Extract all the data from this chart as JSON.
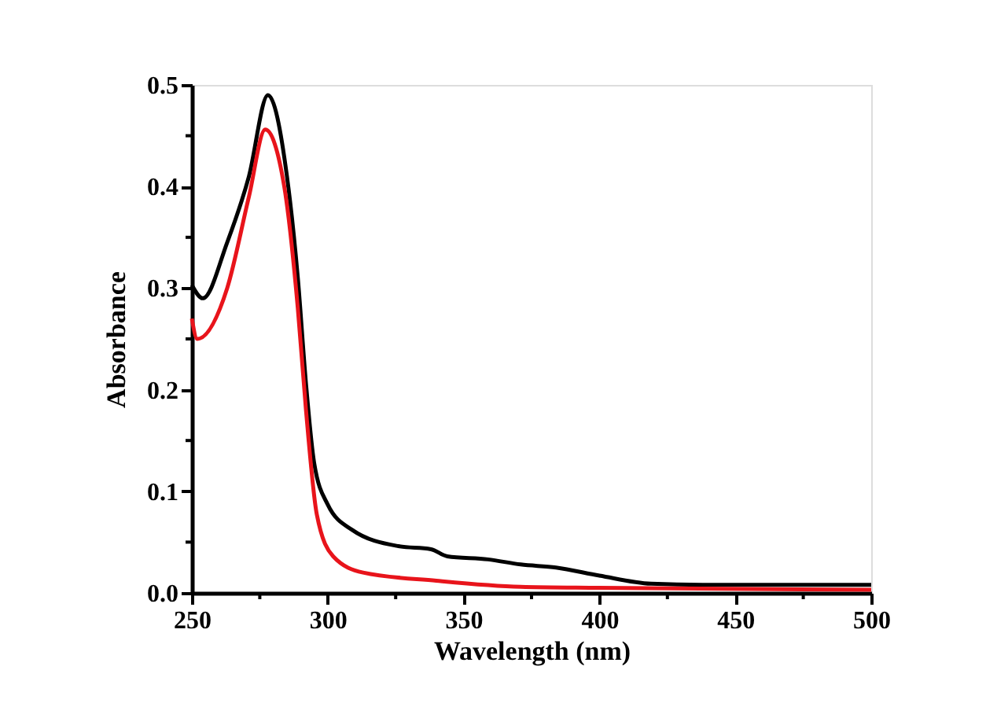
{
  "chart_data": {
    "type": "line",
    "xlabel": "Wavelength (nm)",
    "ylabel": "Absorbance",
    "xlim": [
      250,
      500
    ],
    "ylim": [
      0,
      0.5
    ],
    "xticks": [
      250,
      {
        "value": 275,
        "label": null
      },
      300,
      {
        "value": 325,
        "label": null
      },
      350,
      {
        "value": 375,
        "label": null
      },
      400,
      {
        "value": 425,
        "label": null
      },
      450,
      {
        "value": 475,
        "label": null
      },
      500
    ],
    "yticks": [
      {
        "value": 0,
        "label": "0.0"
      },
      {
        "value": 0.05,
        "label": null
      },
      {
        "value": 0.1,
        "label": "0.1"
      },
      {
        "value": 0.15,
        "label": null
      },
      {
        "value": 0.2,
        "label": "0.2"
      },
      {
        "value": 0.25,
        "label": null
      },
      {
        "value": 0.3,
        "label": "0.3"
      },
      {
        "value": 0.35,
        "label": null
      },
      {
        "value": 0.4,
        "label": "0.4"
      },
      {
        "value": 0.45,
        "label": null
      },
      {
        "value": 0.5,
        "label": "0.5"
      }
    ],
    "grid": false,
    "marker": "none",
    "line_style": "solid",
    "series": [
      {
        "color": "#000000",
        "x": [
          250,
          254,
          263,
          271,
          278,
          285,
          289,
          292,
          295,
          300,
          309,
          326,
          338,
          344,
          359,
          371,
          384,
          400,
          419,
          438,
          500
        ],
        "values": [
          0.303,
          0.29,
          0.345,
          0.41,
          0.49,
          0.41,
          0.31,
          0.206,
          0.128,
          0.087,
          0.062,
          0.046,
          0.043,
          0.036,
          0.033,
          0.028,
          0.025,
          0.017,
          0.009,
          0.008,
          0.008
        ]
      },
      {
        "color": "#e8141b",
        "x": [
          250,
          252,
          263,
          271,
          277,
          284,
          289,
          292,
          296,
          302,
          313,
          340,
          371,
          400,
          500
        ],
        "values": [
          0.27,
          0.25,
          0.3,
          0.39,
          0.456,
          0.4,
          0.28,
          0.18,
          0.077,
          0.036,
          0.02,
          0.012,
          0.006,
          0.005,
          0.003
        ]
      }
    ]
  }
}
